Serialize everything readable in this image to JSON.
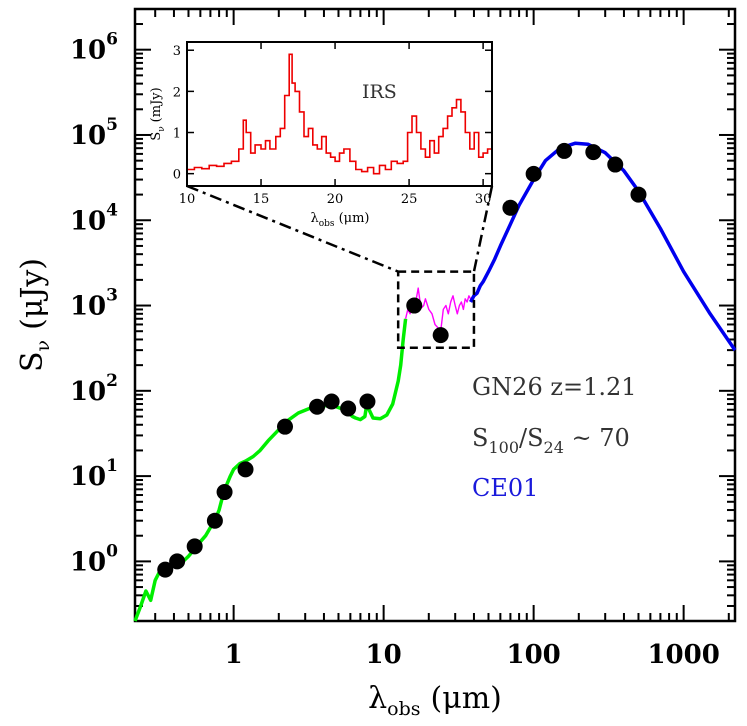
{
  "chart_data": {
    "type": "line",
    "xscale": "log",
    "yscale": "log",
    "xlim": [
      0.22,
      2200
    ],
    "ylim": [
      0.2,
      3000000
    ],
    "x_ticks": [
      {
        "value": 1,
        "label": "1"
      },
      {
        "value": 10,
        "label": "10"
      },
      {
        "value": 100,
        "label": "100"
      },
      {
        "value": 1000,
        "label": "1000"
      }
    ],
    "y_ticks": [
      {
        "value": 1,
        "base": "10",
        "exp": "0"
      },
      {
        "value": 10,
        "base": "10",
        "exp": "1"
      },
      {
        "value": 100,
        "base": "10",
        "exp": "2"
      },
      {
        "value": 1000,
        "base": "10",
        "exp": "3"
      },
      {
        "value": 10000,
        "base": "10",
        "exp": "4"
      },
      {
        "value": 100000,
        "base": "10",
        "exp": "5"
      },
      {
        "value": 1000000,
        "base": "10",
        "exp": "6"
      }
    ],
    "xlabel": {
      "main": "λ",
      "sub": "obs",
      "unit": "(μm)"
    },
    "ylabel": {
      "main": "S",
      "sub": "ν",
      "unit": "(μJy)"
    },
    "series": [
      {
        "color": "#00ee00",
        "points": [
          [
            0.22,
            0.2
          ],
          [
            0.24,
            0.3
          ],
          [
            0.26,
            0.45
          ],
          [
            0.28,
            0.35
          ],
          [
            0.3,
            0.6
          ],
          [
            0.32,
            0.75
          ],
          [
            0.35,
            0.8
          ],
          [
            0.38,
            0.9
          ],
          [
            0.42,
            0.95
          ],
          [
            0.46,
            1.0
          ],
          [
            0.5,
            1.15
          ],
          [
            0.55,
            1.4
          ],
          [
            0.6,
            1.7
          ],
          [
            0.65,
            2.0
          ],
          [
            0.7,
            2.5
          ],
          [
            0.75,
            3.0
          ],
          [
            0.8,
            4.0
          ],
          [
            0.85,
            6.0
          ],
          [
            0.9,
            8.0
          ],
          [
            0.95,
            10.0
          ],
          [
            1.0,
            12.0
          ],
          [
            1.1,
            14.0
          ],
          [
            1.2,
            15.0
          ],
          [
            1.35,
            17.0
          ],
          [
            1.5,
            20.0
          ],
          [
            1.7,
            26.0
          ],
          [
            2.0,
            35.0
          ],
          [
            2.3,
            45.0
          ],
          [
            2.7,
            55.0
          ],
          [
            3.2,
            62.0
          ],
          [
            3.8,
            66.0
          ],
          [
            4.5,
            68.0
          ],
          [
            5.2,
            62.0
          ],
          [
            5.8,
            55.0
          ],
          [
            6.2,
            50.0
          ],
          [
            6.5,
            48.0
          ],
          [
            7.0,
            46.0
          ],
          [
            7.5,
            50.0
          ],
          [
            7.8,
            80.0
          ],
          [
            8.0,
            60.0
          ],
          [
            8.5,
            48.0
          ],
          [
            9.5,
            47.0
          ],
          [
            10.5,
            52.0
          ],
          [
            11.5,
            70.0
          ],
          [
            12.5,
            130.0
          ],
          [
            13.0,
            200.0
          ],
          [
            13.5,
            400.0
          ],
          [
            14.0,
            700.0
          ]
        ]
      },
      {
        "color": "#ff00ff",
        "points": [
          [
            14.0,
            700.0
          ],
          [
            14.5,
            900.0
          ],
          [
            15.0,
            800.0
          ],
          [
            15.5,
            1100.0
          ],
          [
            16.0,
            900.0
          ],
          [
            16.5,
            1200.0
          ],
          [
            17.0,
            1600.0
          ],
          [
            17.5,
            1100.0
          ],
          [
            18.0,
            950.0
          ],
          [
            18.5,
            1000.0
          ],
          [
            19.0,
            1200.0
          ],
          [
            20.0,
            900.0
          ],
          [
            21.0,
            800.0
          ],
          [
            22.0,
            600.0
          ],
          [
            23.0,
            550.0
          ],
          [
            24.0,
            500.0
          ],
          [
            25.0,
            900.0
          ],
          [
            26.0,
            1000.0
          ],
          [
            27.0,
            800.0
          ],
          [
            28.0,
            1100.0
          ],
          [
            29.0,
            1300.0
          ],
          [
            30.0,
            1000.0
          ],
          [
            31.0,
            800.0
          ],
          [
            32.0,
            1000.0
          ],
          [
            33.0,
            1100.0
          ],
          [
            34.0,
            900.0
          ],
          [
            35.0,
            1200.0
          ],
          [
            36.0,
            1100.0
          ],
          [
            37.0,
            1300.0
          ],
          [
            38.0,
            1200.0
          ],
          [
            39.0,
            1100.0
          ]
        ]
      },
      {
        "color": "#0000ee",
        "points": [
          [
            38.0,
            1100.0
          ],
          [
            40.0,
            1300.0
          ],
          [
            42.0,
            1400.0
          ],
          [
            44.0,
            1700.0
          ],
          [
            46.0,
            1900.0
          ],
          [
            50.0,
            2500.0
          ],
          [
            55.0,
            3500.0
          ],
          [
            60.0,
            5000.0
          ],
          [
            70.0,
            9000.0
          ],
          [
            80.0,
            15000.0
          ],
          [
            100.0,
            30000.0
          ],
          [
            120.0,
            50000.0
          ],
          [
            150.0,
            70000.0
          ],
          [
            190.0,
            80000.0
          ],
          [
            230.0,
            78000.0
          ],
          [
            300.0,
            62000.0
          ],
          [
            400.0,
            38000.0
          ],
          [
            500.0,
            22000.0
          ],
          [
            700.0,
            8000.0
          ],
          [
            1000.0,
            2500.0
          ],
          [
            1500.0,
            800.0
          ],
          [
            2200.0,
            300.0
          ]
        ]
      }
    ],
    "points": [
      [
        0.35,
        0.8
      ],
      [
        0.42,
        1.0
      ],
      [
        0.55,
        1.5
      ],
      [
        0.75,
        3.0
      ],
      [
        0.87,
        6.5
      ],
      [
        1.2,
        12.0
      ],
      [
        2.2,
        38.0
      ],
      [
        3.6,
        65.0
      ],
      [
        4.5,
        75.0
      ],
      [
        5.8,
        62.0
      ],
      [
        7.8,
        75.0
      ],
      [
        16.0,
        1000.0
      ],
      [
        24.0,
        450.0
      ],
      [
        70.0,
        14000.0
      ],
      [
        100.0,
        35000.0
      ],
      [
        160.0,
        65000.0
      ],
      [
        250.0,
        63000.0
      ],
      [
        350.0,
        45000.0
      ],
      [
        500.0,
        20000.0
      ]
    ],
    "annotations": [
      {
        "text": "GN26 z=1.21",
        "color": "#333333"
      },
      {
        "main": "S",
        "sub1": "100",
        "mid": "/S",
        "sub2": "24",
        "tail": " ~ 70",
        "color": "#333333"
      },
      {
        "text": "CE01",
        "color": "#1a1adb"
      }
    ],
    "zoom_box": {
      "xlim": [
        12.5,
        40
      ],
      "ylim": [
        320,
        2500
      ]
    },
    "inset": {
      "type": "line",
      "title": "IRS",
      "xlim": [
        10,
        30.6
      ],
      "ylim": [
        -0.3,
        3.2
      ],
      "x_ticks": [
        "10",
        "15",
        "20",
        "25",
        "30"
      ],
      "y_ticks": [
        "0",
        "1",
        "2",
        "3"
      ],
      "xlabel": {
        "main": "λ",
        "sub": "obs",
        "unit": "(μm)"
      },
      "ylabel": {
        "main": "S",
        "sub": "ν",
        "unit": "(mJy)"
      },
      "color": "#ee0000",
      "values": [
        [
          10,
          0.1
        ],
        [
          10.5,
          0.15
        ],
        [
          11,
          0.12
        ],
        [
          11.5,
          0.2
        ],
        [
          12,
          0.18
        ],
        [
          12.5,
          0.25
        ],
        [
          13,
          0.3
        ],
        [
          13.5,
          0.6
        ],
        [
          13.8,
          1.3
        ],
        [
          14,
          1.0
        ],
        [
          14.3,
          0.5
        ],
        [
          14.6,
          0.7
        ],
        [
          15,
          0.6
        ],
        [
          15.3,
          0.8
        ],
        [
          15.6,
          0.6
        ],
        [
          16,
          0.9
        ],
        [
          16.3,
          1.1
        ],
        [
          16.6,
          1.9
        ],
        [
          16.9,
          2.9
        ],
        [
          17.1,
          2.2
        ],
        [
          17.3,
          2.0
        ],
        [
          17.6,
          1.5
        ],
        [
          17.9,
          0.9
        ],
        [
          18.2,
          1.1
        ],
        [
          18.5,
          0.7
        ],
        [
          18.8,
          0.6
        ],
        [
          19.1,
          0.9
        ],
        [
          19.4,
          0.5
        ],
        [
          19.7,
          0.4
        ],
        [
          20,
          0.3
        ],
        [
          20.3,
          0.5
        ],
        [
          20.6,
          0.6
        ],
        [
          21,
          0.3
        ],
        [
          21.4,
          0.1
        ],
        [
          21.8,
          0.05
        ],
        [
          22.2,
          0.15
        ],
        [
          22.6,
          0.0
        ],
        [
          23,
          0.2
        ],
        [
          23.4,
          0.1
        ],
        [
          23.8,
          0.3
        ],
        [
          24.2,
          0.25
        ],
        [
          24.6,
          0.3
        ],
        [
          24.9,
          1.0
        ],
        [
          25.2,
          1.4
        ],
        [
          25.5,
          1.0
        ],
        [
          25.8,
          0.6
        ],
        [
          26.1,
          0.4
        ],
        [
          26.4,
          0.8
        ],
        [
          26.7,
          0.5
        ],
        [
          27,
          0.9
        ],
        [
          27.3,
          1.1
        ],
        [
          27.6,
          1.4
        ],
        [
          27.9,
          1.6
        ],
        [
          28.2,
          1.8
        ],
        [
          28.5,
          1.5
        ],
        [
          28.8,
          1.0
        ],
        [
          29.1,
          0.6
        ],
        [
          29.4,
          1.0
        ],
        [
          29.7,
          0.4
        ],
        [
          30,
          0.5
        ],
        [
          30.3,
          0.6
        ],
        [
          30.6,
          0.5
        ]
      ]
    }
  }
}
